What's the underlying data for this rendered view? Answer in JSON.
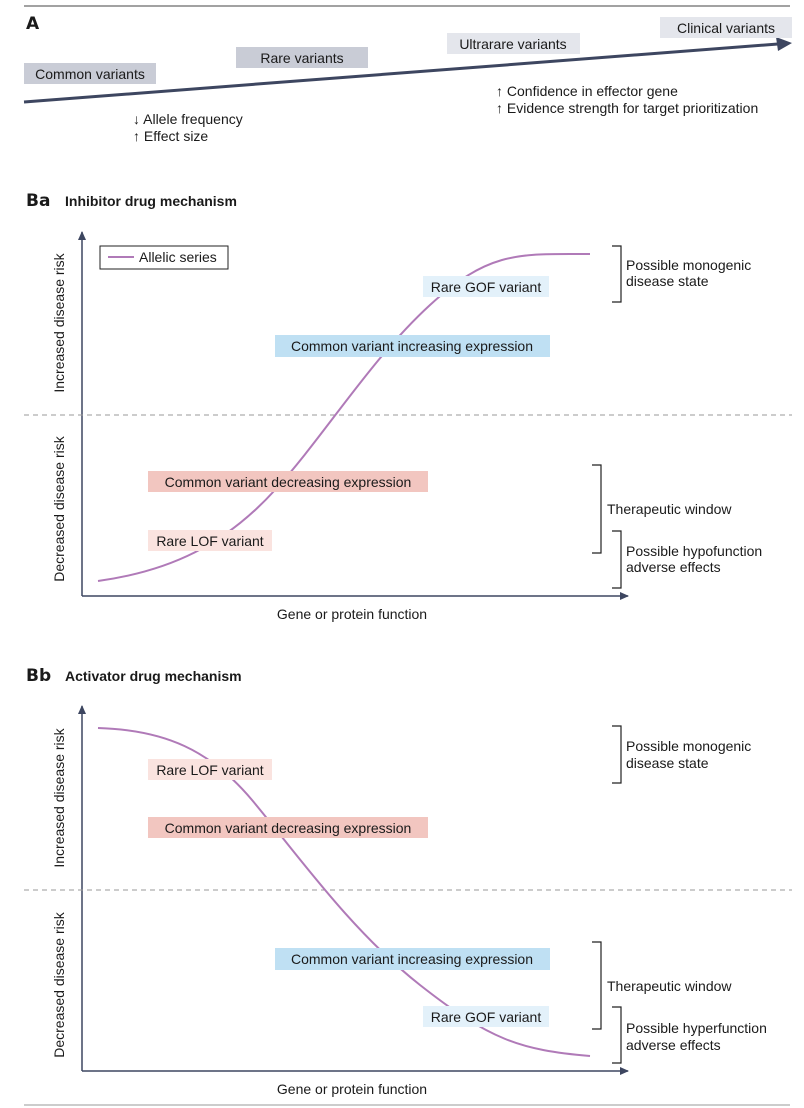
{
  "colors": {
    "axis": "#3d4660",
    "curve": "#b07ab8",
    "dashed": "#9a9a9a",
    "grey_box": "#c9ccd6",
    "light_box": "#e4e6ec",
    "red_box": "#f2c6c0",
    "pink_box": "#fae3df",
    "blue_box": "#bfe0f3",
    "lightblue_box": "#e3f1fa"
  },
  "panel_a": {
    "letter": "A",
    "stages": [
      "Common variants",
      "Rare variants",
      "Ultrarare variants",
      "Clinical variants"
    ],
    "left_notes": [
      "↓ Allele frequency",
      "↑ Effect size"
    ],
    "right_notes": [
      "↑ Confidence in effector gene",
      "↑ Evidence strength for target prioritization"
    ]
  },
  "panel_ba": {
    "letter": "Ba",
    "title": "Inhibitor drug mechanism",
    "legend": "Allelic series",
    "y_upper": "Increased disease risk",
    "y_lower": "Decreased disease risk",
    "x_label": "Gene or protein function",
    "labels": {
      "rare_gof": "Rare GOF variant",
      "common_increase": "Common variant increasing expression",
      "common_decrease": "Common variant decreasing expression",
      "rare_lof": "Rare LOF variant"
    },
    "brackets": {
      "monogenic": [
        "Possible monogenic",
        "disease state"
      ],
      "window": "Therapeutic window",
      "adverse": [
        "Possible hypofunction",
        "adverse effects"
      ]
    }
  },
  "panel_bb": {
    "letter": "Bb",
    "title": "Activator drug mechanism",
    "y_upper": "Increased disease risk",
    "y_lower": "Decreased disease risk",
    "x_label": "Gene or protein function",
    "labels": {
      "rare_lof": "Rare LOF variant",
      "common_decrease": "Common variant decreasing expression",
      "common_increase": "Common variant increasing expression",
      "rare_gof": "Rare GOF variant"
    },
    "brackets": {
      "monogenic": [
        "Possible monogenic",
        "disease state"
      ],
      "window": "Therapeutic window",
      "adverse": [
        "Possible hyperfunction",
        "adverse effects"
      ]
    }
  }
}
